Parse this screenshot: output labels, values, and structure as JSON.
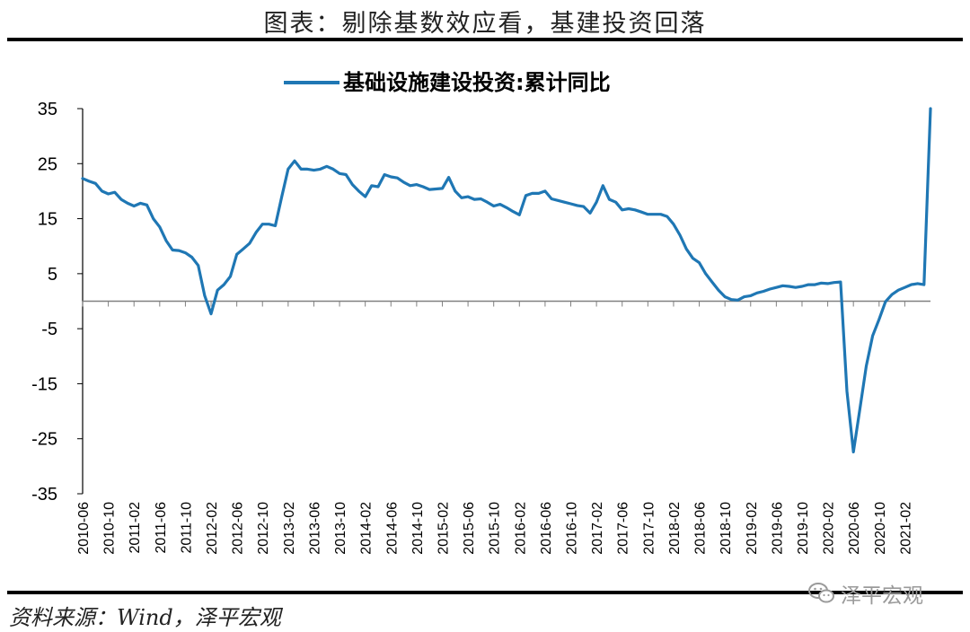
{
  "page": {
    "header_title": "图表：剔除基数效应看，基建投资回落",
    "source_note": "资料来源：Wind，泽平宏观",
    "watermark": "泽平宏观"
  },
  "colors": {
    "series": "#1f77b4",
    "axis": "#000000",
    "zero_line": "#808080"
  },
  "chart_data": {
    "type": "line",
    "title": "",
    "xlabel": "",
    "ylabel": "",
    "ylim": [
      -35,
      35
    ],
    "yticks": [
      35,
      25,
      15,
      5,
      -5,
      -15,
      -25,
      -35
    ],
    "grid": false,
    "legend_position": "top-center",
    "x_tick_labels": [
      "2010-06",
      "2010-10",
      "2011-02",
      "2011-06",
      "2011-10",
      "2012-02",
      "2012-06",
      "2012-10",
      "2013-02",
      "2013-06",
      "2013-10",
      "2014-02",
      "2014-06",
      "2014-10",
      "2015-02",
      "2015-06",
      "2015-10",
      "2016-02",
      "2016-06",
      "2016-10",
      "2017-02",
      "2017-06",
      "2017-10",
      "2018-02",
      "2018-06",
      "2018-10",
      "2019-02",
      "2019-06",
      "2019-10",
      "2020-02",
      "2020-06",
      "2020-10",
      "2021-02"
    ],
    "series": [
      {
        "name": "基础设施建设投资:累计同比",
        "points": [
          [
            "2010-06",
            22.3
          ],
          [
            "2010-07",
            21.8
          ],
          [
            "2010-08",
            21.4
          ],
          [
            "2010-09",
            20.0
          ],
          [
            "2010-10",
            19.5
          ],
          [
            "2010-11",
            19.8
          ],
          [
            "2010-12",
            18.5
          ],
          [
            "2011-01",
            17.8
          ],
          [
            "2011-02",
            17.3
          ],
          [
            "2011-03",
            17.8
          ],
          [
            "2011-04",
            17.5
          ],
          [
            "2011-05",
            15.0
          ],
          [
            "2011-06",
            13.5
          ],
          [
            "2011-07",
            11.0
          ],
          [
            "2011-08",
            9.3
          ],
          [
            "2011-09",
            9.2
          ],
          [
            "2011-10",
            8.8
          ],
          [
            "2011-11",
            8.0
          ],
          [
            "2011-12",
            6.5
          ],
          [
            "2012-01",
            1.0
          ],
          [
            "2012-02",
            -2.3
          ],
          [
            "2012-03",
            2.0
          ],
          [
            "2012-04",
            3.0
          ],
          [
            "2012-05",
            4.5
          ],
          [
            "2012-06",
            8.5
          ],
          [
            "2012-07",
            9.5
          ],
          [
            "2012-08",
            10.5
          ],
          [
            "2012-09",
            12.5
          ],
          [
            "2012-10",
            14.0
          ],
          [
            "2012-11",
            14.0
          ],
          [
            "2012-12",
            13.7
          ],
          [
            "2013-01",
            19.0
          ],
          [
            "2013-02",
            24.0
          ],
          [
            "2013-03",
            25.5
          ],
          [
            "2013-04",
            24.0
          ],
          [
            "2013-05",
            24.0
          ],
          [
            "2013-06",
            23.8
          ],
          [
            "2013-07",
            24.0
          ],
          [
            "2013-08",
            24.5
          ],
          [
            "2013-09",
            24.0
          ],
          [
            "2013-10",
            23.2
          ],
          [
            "2013-11",
            23.0
          ],
          [
            "2013-12",
            21.2
          ],
          [
            "2014-01",
            20.0
          ],
          [
            "2014-02",
            19.0
          ],
          [
            "2014-03",
            21.0
          ],
          [
            "2014-04",
            20.8
          ],
          [
            "2014-05",
            23.0
          ],
          [
            "2014-06",
            22.6
          ],
          [
            "2014-07",
            22.4
          ],
          [
            "2014-08",
            21.6
          ],
          [
            "2014-09",
            21.0
          ],
          [
            "2014-10",
            21.2
          ],
          [
            "2014-11",
            20.8
          ],
          [
            "2014-12",
            20.3
          ],
          [
            "2015-01",
            20.4
          ],
          [
            "2015-02",
            20.5
          ],
          [
            "2015-03",
            22.5
          ],
          [
            "2015-04",
            20.0
          ],
          [
            "2015-05",
            18.8
          ],
          [
            "2015-06",
            19.0
          ],
          [
            "2015-07",
            18.5
          ],
          [
            "2015-08",
            18.6
          ],
          [
            "2015-09",
            18.0
          ],
          [
            "2015-10",
            17.3
          ],
          [
            "2015-11",
            17.6
          ],
          [
            "2015-12",
            17.0
          ],
          [
            "2016-01",
            16.3
          ],
          [
            "2016-02",
            15.7
          ],
          [
            "2016-03",
            19.2
          ],
          [
            "2016-04",
            19.6
          ],
          [
            "2016-05",
            19.6
          ],
          [
            "2016-06",
            20.0
          ],
          [
            "2016-07",
            18.6
          ],
          [
            "2016-08",
            18.3
          ],
          [
            "2016-09",
            18.0
          ],
          [
            "2016-10",
            17.7
          ],
          [
            "2016-11",
            17.4
          ],
          [
            "2016-12",
            17.2
          ],
          [
            "2017-01",
            16.0
          ],
          [
            "2017-02",
            18.0
          ],
          [
            "2017-03",
            21.0
          ],
          [
            "2017-04",
            18.5
          ],
          [
            "2017-05",
            18.0
          ],
          [
            "2017-06",
            16.6
          ],
          [
            "2017-07",
            16.8
          ],
          [
            "2017-08",
            16.6
          ],
          [
            "2017-09",
            16.2
          ],
          [
            "2017-10",
            15.8
          ],
          [
            "2017-11",
            15.8
          ],
          [
            "2017-12",
            15.8
          ],
          [
            "2018-01",
            15.4
          ],
          [
            "2018-02",
            14.0
          ],
          [
            "2018-03",
            12.0
          ],
          [
            "2018-04",
            9.5
          ],
          [
            "2018-05",
            7.8
          ],
          [
            "2018-06",
            7.0
          ],
          [
            "2018-07",
            5.0
          ],
          [
            "2018-08",
            3.5
          ],
          [
            "2018-09",
            2.0
          ],
          [
            "2018-10",
            0.8
          ],
          [
            "2018-11",
            0.3
          ],
          [
            "2018-12",
            0.2
          ],
          [
            "2019-01",
            0.8
          ],
          [
            "2019-02",
            1.0
          ],
          [
            "2019-03",
            1.5
          ],
          [
            "2019-04",
            1.8
          ],
          [
            "2019-05",
            2.2
          ],
          [
            "2019-06",
            2.5
          ],
          [
            "2019-07",
            2.8
          ],
          [
            "2019-08",
            2.7
          ],
          [
            "2019-09",
            2.5
          ],
          [
            "2019-10",
            2.7
          ],
          [
            "2019-11",
            3.0
          ],
          [
            "2019-12",
            3.0
          ],
          [
            "2020-01",
            3.3
          ],
          [
            "2020-02",
            3.2
          ],
          [
            "2020-03",
            3.4
          ],
          [
            "2020-04",
            3.5
          ],
          [
            "2020-05",
            -16.4
          ],
          [
            "2020-06",
            -27.4
          ],
          [
            "2020-07",
            -19.7
          ],
          [
            "2020-08",
            -11.8
          ],
          [
            "2020-09",
            -6.3
          ],
          [
            "2020-10",
            -3.3
          ],
          [
            "2020-11",
            -0.1
          ],
          [
            "2020-12",
            1.2
          ],
          [
            "2021-01",
            2.0
          ],
          [
            "2021-02",
            2.5
          ],
          [
            "2021-03",
            3.0
          ],
          [
            "2021-04",
            3.2
          ],
          [
            "2021-05",
            3.0
          ],
          [
            "2021-06",
            35.0
          ]
        ]
      }
    ]
  }
}
